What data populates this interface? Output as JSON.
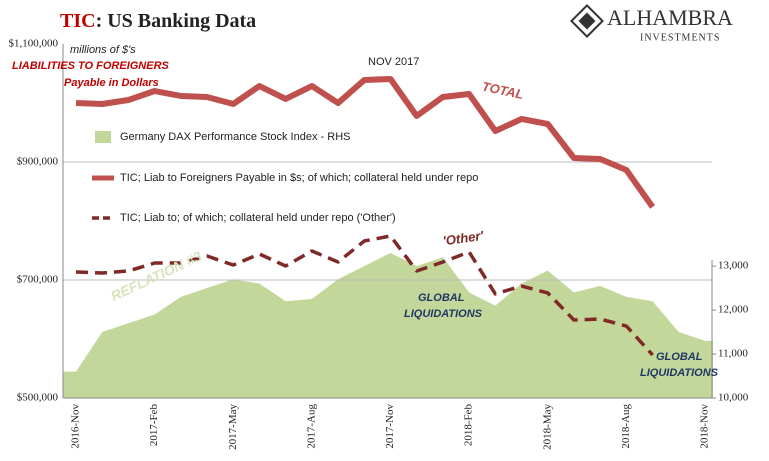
{
  "chart_data": {
    "type": "line",
    "title": [
      "TIC",
      ": US Banking Data"
    ],
    "logo": [
      "ALHAMBRA",
      "INVESTMENTS"
    ],
    "categories": [
      "2016-Nov",
      null,
      null,
      "2017-Feb",
      null,
      null,
      "2017-May",
      null,
      null,
      "2017-Aug",
      null,
      null,
      "2017-Nov",
      null,
      null,
      "2018-Feb",
      null,
      null,
      "2018-May",
      null,
      null,
      "2018-Aug",
      null,
      null,
      "2018-Nov"
    ],
    "ylim": [
      500000,
      1100000
    ],
    "yticks": [
      {
        "value": 500000,
        "label": "$500,000"
      },
      {
        "value": 700000,
        "label": "$700,000"
      },
      {
        "value": 900000,
        "label": "$900,000"
      },
      {
        "value": 1100000,
        "label": "$1,100,000"
      }
    ],
    "y2lim": [
      10000,
      18050
    ],
    "y2ticks": [
      {
        "value": 10000,
        "label": "10,000"
      },
      {
        "value": 11000,
        "label": "11,000"
      },
      {
        "value": 12000,
        "label": "12,000"
      },
      {
        "value": 13000,
        "label": "13,000"
      }
    ],
    "grid": true,
    "series": [
      {
        "name": "Germany DAX Performance Stock Index - RHS",
        "type": "area",
        "axis": "y2",
        "color": "#c4d79b",
        "values": [
          10600,
          11500,
          11700,
          11900,
          12300,
          12500,
          12700,
          12600,
          12200,
          12250,
          12700,
          13000,
          13300,
          13000,
          13200,
          12400,
          12100,
          12600,
          12900,
          12400,
          12550,
          12300,
          12200,
          11500,
          11300
        ]
      },
      {
        "name": "TIC; Liab to Foreigners Payable in $s; of which; collateral held under repo",
        "type": "line",
        "color": "#c0504d",
        "values": [
          1000000,
          998300,
          1005100,
          1020300,
          1011900,
          1010200,
          998300,
          1028800,
          1006800,
          1028800,
          1000000,
          1039000,
          1040700,
          978000,
          1010200,
          1015300,
          952500,
          972900,
          964400,
          906800,
          905100,
          886400,
          823700,
          null,
          null
        ]
      },
      {
        "name": "TIC; Liab to; of which; collateral held under repo ('Other')",
        "type": "dashed",
        "color": "#7f2a28",
        "values": [
          713600,
          711900,
          715300,
          728800,
          728800,
          740700,
          725400,
          744100,
          723700,
          749200,
          730500,
          766100,
          774600,
          715300,
          730500,
          747500,
          676300,
          689800,
          678000,
          632200,
          633900,
          622000,
          572900,
          null,
          null
        ]
      }
    ],
    "annotations": [
      "millions of $'s",
      "LIABILITIES TO FOREIGNERS",
      "Payable in Dollars",
      "NOV 2017",
      "TOTAL",
      "'Other'",
      "REFLATION #3",
      "GLOBAL",
      "LIQUIDATIONS",
      "GLOBAL",
      "LIQUIDATIONS"
    ]
  }
}
